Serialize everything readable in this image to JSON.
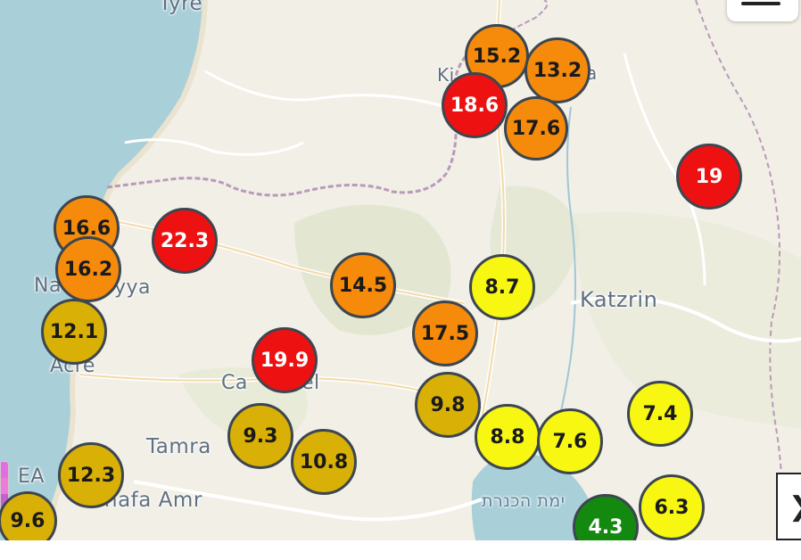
{
  "map": {
    "places": [
      {
        "id": "tyre",
        "label": "Tyre"
      },
      {
        "id": "kiryat-shmona",
        "label": "Ki"
      },
      {
        "id": "kiryat-shmona-tail",
        "label": "a"
      },
      {
        "id": "nahariyya",
        "label": "Na"
      },
      {
        "id": "nahariyya-tail",
        "label": "yya"
      },
      {
        "id": "katzrin",
        "label": "Katzrin"
      },
      {
        "id": "acre",
        "label": "Acre"
      },
      {
        "id": "carmiel",
        "label": "Ca"
      },
      {
        "id": "carmiel-tail",
        "label": "el"
      },
      {
        "id": "tamra",
        "label": "Tamra"
      },
      {
        "id": "shafa-amr",
        "label": "hafa Amr"
      },
      {
        "id": "haifa",
        "label": "EA"
      },
      {
        "id": "sea-of-galilee",
        "label": "ימת הכנרת"
      }
    ],
    "markers": [
      {
        "value": "15.2",
        "level": "orange"
      },
      {
        "value": "13.2",
        "level": "orange"
      },
      {
        "value": "18.6",
        "level": "red"
      },
      {
        "value": "17.6",
        "level": "orange"
      },
      {
        "value": "19",
        "level": "red"
      },
      {
        "value": "16.6",
        "level": "orange"
      },
      {
        "value": "22.3",
        "level": "red"
      },
      {
        "value": "16.2",
        "level": "orange"
      },
      {
        "value": "14.5",
        "level": "orange"
      },
      {
        "value": "8.7",
        "level": "yellow"
      },
      {
        "value": "12.1",
        "level": "gold"
      },
      {
        "value": "17.5",
        "level": "orange"
      },
      {
        "value": "19.9",
        "level": "red"
      },
      {
        "value": "9.8",
        "level": "gold"
      },
      {
        "value": "7.4",
        "level": "yellow"
      },
      {
        "value": "9.3",
        "level": "gold"
      },
      {
        "value": "8.8",
        "level": "yellow"
      },
      {
        "value": "7.6",
        "level": "yellow"
      },
      {
        "value": "10.8",
        "level": "gold"
      },
      {
        "value": "12.3",
        "level": "gold"
      },
      {
        "value": "6.3",
        "level": "yellow"
      },
      {
        "value": "9.6",
        "level": "gold"
      },
      {
        "value": "4.3",
        "level": "green"
      }
    ]
  },
  "controls": {
    "side_button_icon": "chevron-right-icon",
    "side_button_glyph": "❯",
    "top_button_icon": "menu-icon"
  },
  "colors": {
    "orange": "#f58a0b",
    "red": "#ee1111",
    "gold": "#d9b006",
    "yellow": "#f7f711",
    "green": "#138a0f",
    "sea": "#a9cfd9"
  }
}
